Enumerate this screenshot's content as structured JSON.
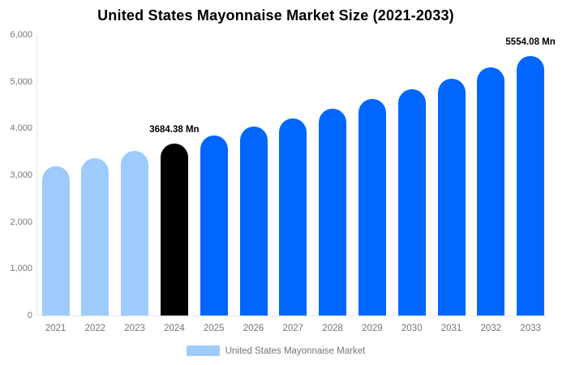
{
  "title": "United States Mayonnaise Market Size (2021-2033)",
  "legend": {
    "label": "United States Mayonnaise Market",
    "swatch_color": "#9ECBFB"
  },
  "colors": {
    "bar_light_blue": "#9ECBFB",
    "bar_bright_blue": "#0066FE",
    "bar_black": "#000000",
    "axis_text": "#757575",
    "axis_line": "#E6E6E6",
    "title_text": "#000000",
    "data_label_text": "#000000",
    "background": "#FFFFFF"
  },
  "chart_data": {
    "type": "bar",
    "title": "United States Mayonnaise Market Size (2021-2033)",
    "unit": "Mn",
    "xlabel": "",
    "ylabel": "",
    "categories": [
      "2021",
      "2022",
      "2023",
      "2024",
      "2025",
      "2026",
      "2027",
      "2028",
      "2029",
      "2030",
      "2031",
      "2032",
      "2033"
    ],
    "values": [
      3200,
      3360,
      3520,
      3684.38,
      3856,
      4036,
      4224,
      4421,
      4628,
      4844,
      5070,
      5307,
      5554.08
    ],
    "bar_colors": [
      "#9ECBFB",
      "#9ECBFB",
      "#9ECBFB",
      "#000000",
      "#0066FE",
      "#0066FE",
      "#0066FE",
      "#0066FE",
      "#0066FE",
      "#0066FE",
      "#0066FE",
      "#0066FE",
      "#0066FE"
    ],
    "data_labels": [
      {
        "category": "2024",
        "text": "3684.38 Mn"
      },
      {
        "category": "2033",
        "text": "5554.08 Mn"
      }
    ],
    "ylim": [
      0,
      6000
    ],
    "ytick_interval": 1000,
    "ytick_labels": [
      "6,000",
      "5,000",
      "4,000",
      "3,000",
      "2,000",
      "1,000",
      "0"
    ],
    "grid": false,
    "legend_position": "bottom",
    "legend_entries": [
      "United States Mayonnaise Market"
    ]
  }
}
